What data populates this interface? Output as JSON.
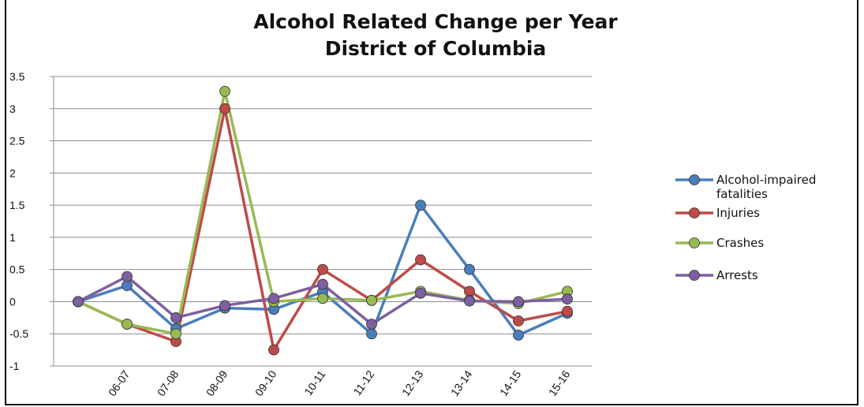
{
  "chart_data": {
    "type": "line",
    "title_line1": "Alcohol Related Change per Year",
    "title_line2": "District of Columbia",
    "categories": [
      "",
      "06-07",
      "07-08",
      "08-09",
      "09-10",
      "10-11",
      "11-12",
      "12-13",
      "13-14",
      "14-15",
      "15-16"
    ],
    "ylim": [
      -1,
      3.5
    ],
    "yticks": [
      3.5,
      3,
      2.5,
      2,
      1.5,
      1,
      0.5,
      0,
      -0.5,
      -1
    ],
    "ytick_labels": [
      "3.5",
      "3",
      "2.5",
      "2",
      "1.5",
      "1",
      "0.5",
      "0",
      "-0.5",
      "-1"
    ],
    "grid": true,
    "legend_position": "right",
    "series": [
      {
        "name": "Alcohol-impaired fatalities",
        "name_lines": [
          "Alcohol-impaired",
          "fatalities"
        ],
        "color": "#4a7ebb",
        "values": [
          0,
          0.25,
          -0.42,
          -0.1,
          -0.12,
          0.15,
          -0.5,
          1.5,
          0.5,
          -0.52,
          -0.18
        ]
      },
      {
        "name": "Injuries",
        "name_lines": [
          "Injuries"
        ],
        "color": "#be4b48",
        "values": [
          0,
          -0.35,
          -0.62,
          3.0,
          -0.75,
          0.5,
          0.02,
          0.65,
          0.16,
          -0.3,
          -0.15
        ]
      },
      {
        "name": "Crashes",
        "name_lines": [
          "Crashes"
        ],
        "color": "#98b954",
        "values": [
          0,
          -0.35,
          -0.5,
          3.27,
          0.0,
          0.05,
          0.02,
          0.16,
          0.02,
          -0.03,
          0.16
        ]
      },
      {
        "name": "Arrests",
        "name_lines": [
          "Arrests"
        ],
        "color": "#7d60a0",
        "values": [
          0,
          0.39,
          -0.25,
          -0.06,
          0.05,
          0.27,
          -0.35,
          0.13,
          0.01,
          0.0,
          0.04
        ]
      }
    ]
  }
}
